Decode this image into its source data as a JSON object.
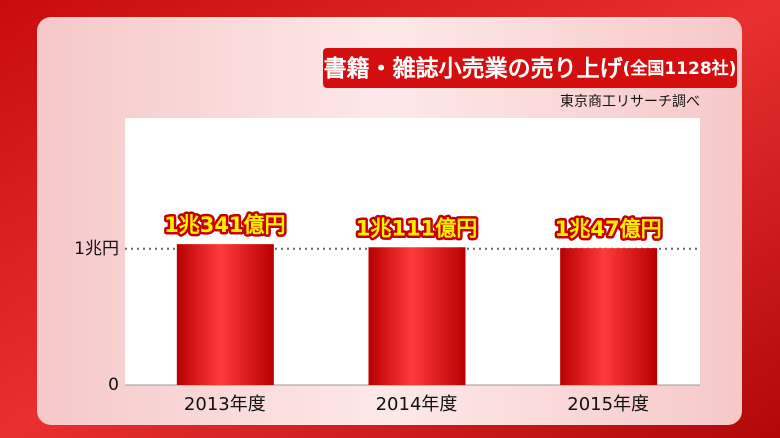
{
  "chart_data": {
    "type": "bar",
    "title": "書籍・雑誌小売業の売り上げ",
    "subtitle": "(全国1128社)",
    "source": "東京商工リサーチ調べ",
    "categories": [
      "2013年度",
      "2014年度",
      "2015年度"
    ],
    "values": [
      10341,
      10111,
      10047
    ],
    "value_labels": [
      "1兆341億円",
      "1兆111億円",
      "1兆47億円"
    ],
    "color": "#e00a0a",
    "ylim": [
      0,
      19600
    ],
    "yticks": [
      0,
      {
        "value": 10000,
        "label": "1兆円"
      }
    ]
  }
}
